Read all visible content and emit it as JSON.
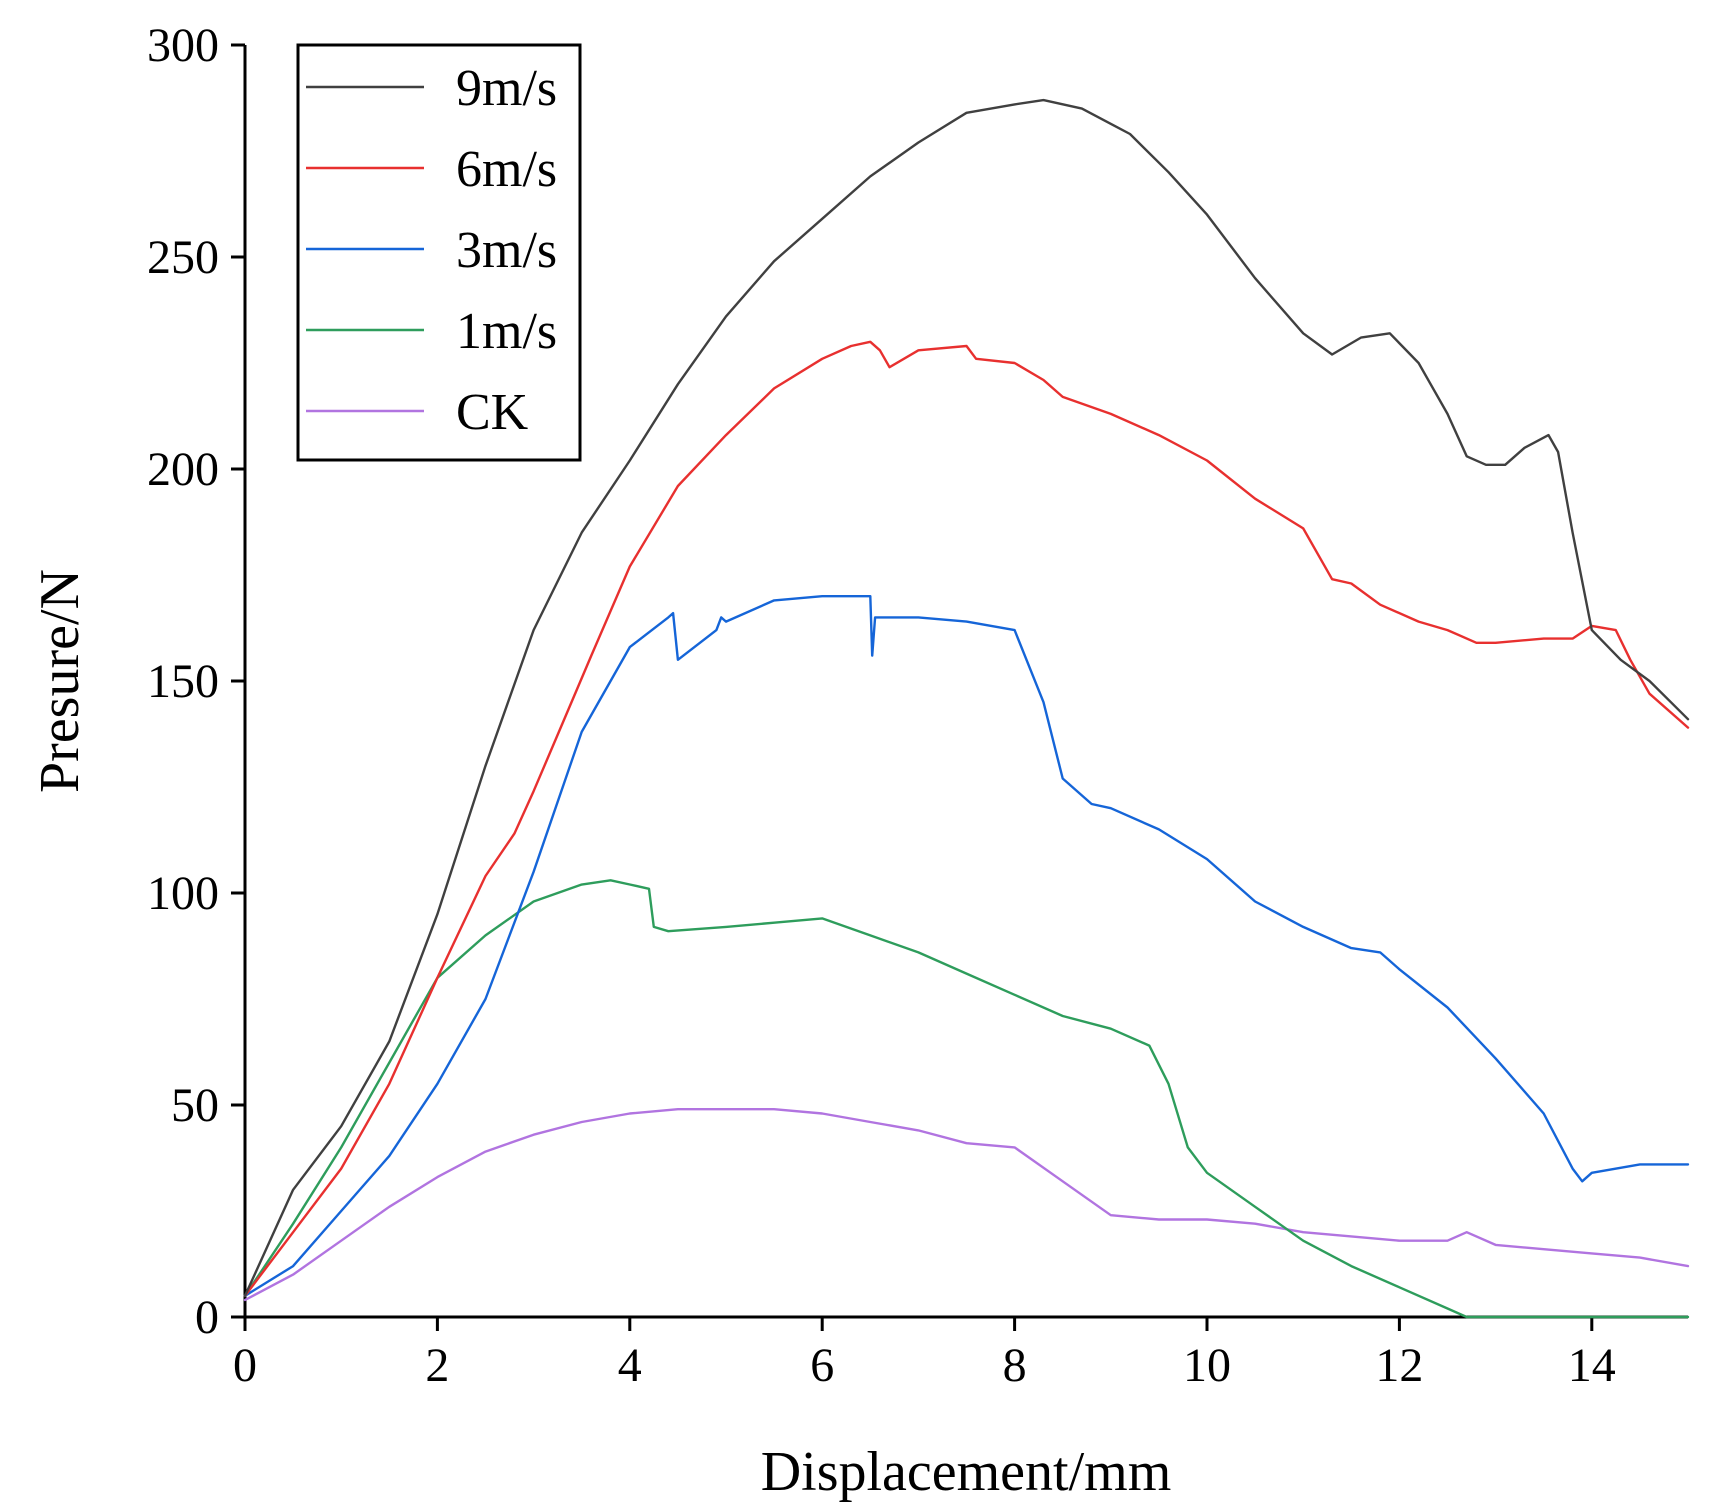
{
  "chart_data": {
    "type": "line",
    "title": "",
    "xlabel": "Displacement/mm",
    "ylabel": "Presure/N",
    "xlim": [
      0,
      15
    ],
    "ylim": [
      0,
      300
    ],
    "xticks": [
      0,
      2,
      4,
      6,
      8,
      10,
      12,
      14
    ],
    "yticks": [
      0,
      50,
      100,
      150,
      200,
      250,
      300
    ],
    "grid": false,
    "legend_position": "top-left",
    "series": [
      {
        "name": "9m/s",
        "color": "#404040",
        "x": [
          0,
          0.5,
          1.0,
          1.5,
          2.0,
          2.5,
          3.0,
          3.5,
          4.0,
          4.5,
          5.0,
          5.5,
          6.0,
          6.5,
          7.0,
          7.5,
          8.0,
          8.3,
          8.7,
          9.2,
          9.6,
          10.0,
          10.5,
          11.0,
          11.3,
          11.6,
          11.9,
          12.2,
          12.5,
          12.7,
          12.9,
          13.1,
          13.3,
          13.55,
          13.65,
          13.8,
          14.0,
          14.3,
          14.6,
          15.0
        ],
        "values": [
          5,
          30,
          45,
          65,
          95,
          130,
          162,
          185,
          202,
          220,
          236,
          249,
          259,
          269,
          277,
          284,
          286,
          287,
          285,
          279,
          270,
          260,
          245,
          232,
          227,
          231,
          232,
          225,
          213,
          203,
          201,
          201,
          205,
          208,
          204,
          185,
          162,
          155,
          150,
          141
        ]
      },
      {
        "name": "6m/s",
        "color": "#e8302f",
        "x": [
          0,
          0.5,
          1.0,
          1.5,
          2.0,
          2.5,
          2.8,
          3.0,
          3.3,
          3.6,
          4.0,
          4.5,
          5.0,
          5.5,
          6.0,
          6.3,
          6.5,
          6.6,
          6.7,
          7.0,
          7.5,
          7.6,
          8.0,
          8.3,
          8.5,
          9.0,
          9.5,
          10.0,
          10.5,
          11.0,
          11.3,
          11.5,
          11.8,
          12.2,
          12.5,
          12.8,
          13.0,
          13.5,
          13.8,
          14.0,
          14.25,
          14.4,
          14.6,
          15.0
        ],
        "values": [
          5,
          20,
          35,
          55,
          80,
          104,
          114,
          124,
          140,
          156,
          177,
          196,
          208,
          219,
          226,
          229,
          230,
          228,
          224,
          228,
          229,
          226,
          225,
          221,
          217,
          213,
          208,
          202,
          193,
          186,
          174,
          173,
          168,
          164,
          162,
          159,
          159,
          160,
          160,
          163,
          162,
          155,
          147,
          139
        ]
      },
      {
        "name": "3m/s",
        "color": "#1565d8",
        "x": [
          0,
          0.5,
          1.0,
          1.5,
          2.0,
          2.5,
          3.0,
          3.5,
          4.0,
          4.4,
          4.45,
          4.5,
          4.9,
          4.95,
          5.0,
          5.5,
          6.0,
          6.5,
          6.52,
          6.55,
          6.6,
          7.0,
          7.5,
          8.0,
          8.3,
          8.5,
          8.8,
          9.0,
          9.5,
          10.0,
          10.5,
          11.0,
          11.5,
          11.8,
          12.0,
          12.5,
          13.0,
          13.5,
          13.8,
          13.9,
          14.0,
          14.5,
          15.0
        ],
        "values": [
          5,
          12,
          25,
          38,
          55,
          75,
          105,
          138,
          158,
          165,
          166,
          155,
          162,
          165,
          164,
          169,
          170,
          170,
          156,
          165,
          165,
          165,
          164,
          162,
          145,
          127,
          121,
          120,
          115,
          108,
          98,
          92,
          87,
          86,
          82,
          73,
          61,
          48,
          35,
          32,
          34,
          36,
          36
        ]
      },
      {
        "name": "1m/s",
        "color": "#2e9d5c",
        "x": [
          0,
          0.5,
          1.0,
          1.5,
          2.0,
          2.5,
          3.0,
          3.5,
          3.8,
          4.0,
          4.2,
          4.25,
          4.4,
          5.0,
          5.5,
          6.0,
          6.5,
          7.0,
          7.5,
          8.0,
          8.5,
          9.0,
          9.4,
          9.6,
          9.8,
          10.0,
          10.5,
          11.0,
          11.5,
          12.0,
          12.5,
          12.7,
          13.0,
          15.0
        ],
        "values": [
          5,
          22,
          40,
          60,
          80,
          90,
          98,
          102,
          103,
          102,
          101,
          92,
          91,
          92,
          93,
          94,
          90,
          86,
          81,
          76,
          71,
          68,
          64,
          55,
          40,
          34,
          26,
          18,
          12,
          7,
          2,
          0,
          0,
          0
        ]
      },
      {
        "name": "CK",
        "color": "#b174e0",
        "x": [
          0,
          0.5,
          1.0,
          1.5,
          2.0,
          2.5,
          3.0,
          3.5,
          4.0,
          4.5,
          5.0,
          5.5,
          6.0,
          6.5,
          7.0,
          7.5,
          8.0,
          8.5,
          9.0,
          9.5,
          10.0,
          10.5,
          11.0,
          11.5,
          12.0,
          12.5,
          12.7,
          13.0,
          13.5,
          14.0,
          14.5,
          15.0
        ],
        "values": [
          4,
          10,
          18,
          26,
          33,
          39,
          43,
          46,
          48,
          49,
          49,
          49,
          48,
          46,
          44,
          41,
          40,
          32,
          24,
          23,
          23,
          22,
          20,
          19,
          18,
          18,
          20,
          17,
          16,
          15,
          14,
          12
        ]
      }
    ]
  }
}
